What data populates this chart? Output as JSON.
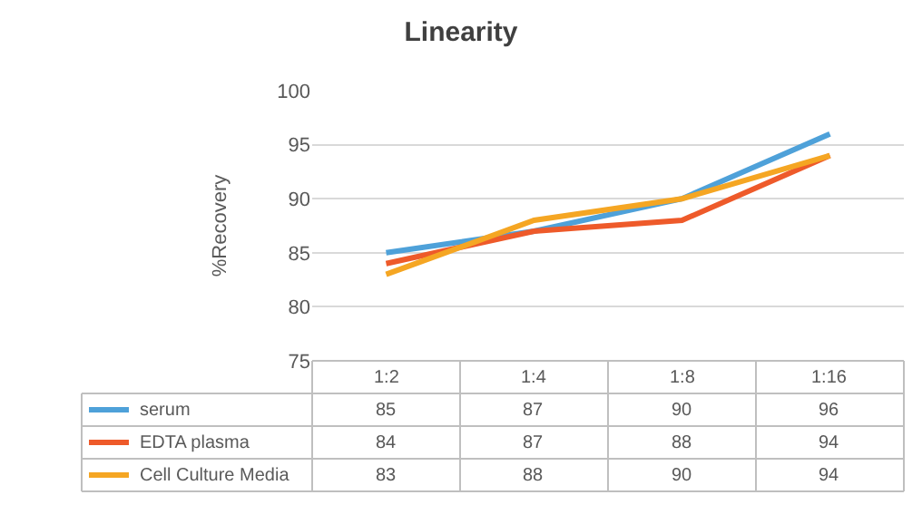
{
  "chart_data": {
    "type": "line",
    "title": "Linearity",
    "ylabel": "%Recovery",
    "categories": [
      "1:2",
      "1:4",
      "1:8",
      "1:16"
    ],
    "series": [
      {
        "name": "serum",
        "color": "#4ea1d9",
        "values": [
          85,
          87,
          90,
          96
        ]
      },
      {
        "name": "EDTA plasma",
        "color": "#ee5a2a",
        "values": [
          84,
          87,
          88,
          94
        ]
      },
      {
        "name": "Cell Culture Media",
        "color": "#f5a623",
        "values": [
          83,
          88,
          90,
          94
        ]
      }
    ],
    "ylim": [
      75,
      100
    ],
    "yticks": [
      75,
      80,
      85,
      90,
      95,
      100
    ],
    "grid": "y",
    "data_labels": true,
    "legend": "bottom",
    "marker": "none",
    "line_style": "solid"
  }
}
